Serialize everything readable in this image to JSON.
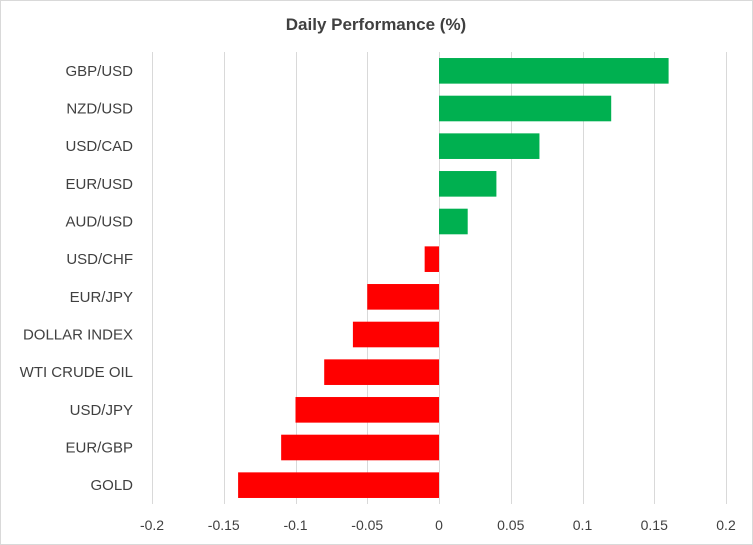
{
  "chart_data": {
    "type": "bar",
    "orientation": "horizontal",
    "title": "Daily Performance (%)",
    "xlabel": "",
    "ylabel": "",
    "xlim": [
      -0.2,
      0.2
    ],
    "xticks": [
      -0.2,
      -0.15,
      -0.1,
      -0.05,
      0,
      0.05,
      0.1,
      0.15,
      0.2
    ],
    "xtick_labels": [
      "-0.2",
      "-0.15",
      "-0.1",
      "-0.05",
      "0",
      "0.05",
      "0.1",
      "0.15",
      "0.2"
    ],
    "grid": true,
    "categories": [
      "GBP/USD",
      "NZD/USD",
      "USD/CAD",
      "EUR/USD",
      "AUD/USD",
      "USD/CHF",
      "EUR/JPY",
      "DOLLAR INDEX",
      "WTI CRUDE OIL",
      "USD/JPY",
      "EUR/GBP",
      "GOLD"
    ],
    "values": [
      0.16,
      0.12,
      0.07,
      0.04,
      0.02,
      -0.01,
      -0.05,
      -0.06,
      -0.08,
      -0.1,
      -0.11,
      -0.14
    ],
    "colors": {
      "positive": "#00b050",
      "negative": "#ff0000"
    }
  }
}
